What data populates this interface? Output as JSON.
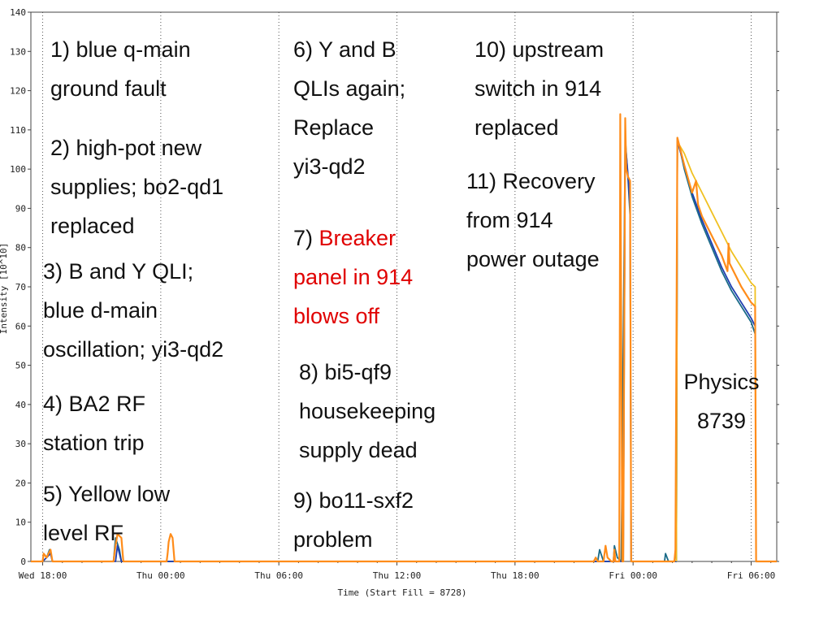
{
  "chart_data": {
    "type": "line",
    "xlabel": "Time (Start Fill = 8728)",
    "ylabel": "Intensity [10^10]",
    "ylim": [
      0,
      140
    ],
    "y_ticks": [
      0,
      10,
      20,
      30,
      40,
      50,
      60,
      70,
      80,
      90,
      100,
      110,
      120,
      130,
      140
    ],
    "x_range_hours": [
      -0.6,
      37.3
    ],
    "x_ticks": [
      {
        "label": "Wed 18:00",
        "hour": 0
      },
      {
        "label": "Thu 00:00",
        "hour": 6
      },
      {
        "label": "Thu 06:00",
        "hour": 12
      },
      {
        "label": "Thu 12:00",
        "hour": 18
      },
      {
        "label": "Thu 18:00",
        "hour": 24
      },
      {
        "label": "Fri 00:00",
        "hour": 30
      },
      {
        "label": "Fri 06:00",
        "hour": 36
      }
    ],
    "grid": "vertical dotted at ticks",
    "series": [
      {
        "color": "#1a6b88",
        "points": [
          [
            0,
            0
          ],
          [
            0.05,
            2
          ],
          [
            0.2,
            1
          ],
          [
            0.35,
            3
          ],
          [
            0.5,
            0
          ],
          [
            3.6,
            0
          ],
          [
            3.7,
            6
          ],
          [
            3.9,
            3
          ],
          [
            4.0,
            0
          ],
          [
            28.2,
            0
          ],
          [
            28.3,
            3
          ],
          [
            28.5,
            0
          ],
          [
            29.0,
            0
          ],
          [
            29.05,
            4
          ],
          [
            29.2,
            1
          ],
          [
            29.4,
            0
          ],
          [
            29.6,
            108
          ],
          [
            29.75,
            97
          ],
          [
            29.85,
            88
          ],
          [
            29.9,
            0
          ],
          [
            31.6,
            0
          ],
          [
            31.65,
            2
          ],
          [
            31.8,
            0
          ],
          [
            32.2,
            0
          ],
          [
            32.25,
            108
          ],
          [
            32.6,
            100
          ],
          [
            33.0,
            93
          ],
          [
            33.5,
            86
          ],
          [
            34.0,
            80
          ],
          [
            34.5,
            74
          ],
          [
            35.0,
            69
          ],
          [
            35.5,
            65
          ],
          [
            36.0,
            61
          ],
          [
            36.2,
            58
          ]
        ]
      },
      {
        "color": "#1f3fb0",
        "points": [
          [
            0,
            0
          ],
          [
            0.2,
            1
          ],
          [
            0.4,
            2
          ],
          [
            0.5,
            0
          ],
          [
            3.7,
            0
          ],
          [
            3.8,
            4
          ],
          [
            4.0,
            0
          ],
          [
            29.0,
            0
          ],
          [
            29.5,
            0
          ],
          [
            29.6,
            107
          ],
          [
            29.75,
            98
          ],
          [
            29.85,
            90
          ],
          [
            29.9,
            0
          ],
          [
            32.2,
            0
          ],
          [
            32.25,
            107
          ],
          [
            32.6,
            101
          ],
          [
            33.0,
            94
          ],
          [
            33.5,
            87
          ],
          [
            34.0,
            81
          ],
          [
            34.5,
            75
          ],
          [
            35.0,
            70
          ],
          [
            35.5,
            66
          ],
          [
            36.0,
            62
          ],
          [
            36.2,
            60
          ]
        ]
      },
      {
        "color": "#f0c020",
        "points": [
          [
            32.2,
            0
          ],
          [
            32.25,
            107
          ],
          [
            32.6,
            104
          ],
          [
            33.0,
            99
          ],
          [
            33.5,
            94
          ],
          [
            34.0,
            89
          ],
          [
            34.5,
            84
          ],
          [
            35.0,
            79
          ],
          [
            35.5,
            75
          ],
          [
            36.0,
            71
          ],
          [
            36.2,
            70
          ],
          [
            36.25,
            0
          ]
        ]
      },
      {
        "color": "#ff8c1a",
        "points": [
          [
            -0.6,
            0
          ],
          [
            0.0,
            0
          ],
          [
            0.05,
            2
          ],
          [
            0.2,
            1
          ],
          [
            0.4,
            3
          ],
          [
            0.5,
            0
          ],
          [
            3.6,
            0
          ],
          [
            3.7,
            4
          ],
          [
            3.8,
            7
          ],
          [
            4.0,
            6
          ],
          [
            4.1,
            0
          ],
          [
            6.3,
            0
          ],
          [
            6.35,
            2
          ],
          [
            6.4,
            5
          ],
          [
            6.5,
            7
          ],
          [
            6.6,
            6
          ],
          [
            6.7,
            0
          ],
          [
            28.0,
            0
          ],
          [
            28.1,
            1
          ],
          [
            28.2,
            0
          ],
          [
            28.5,
            0
          ],
          [
            28.6,
            4
          ],
          [
            28.7,
            1
          ],
          [
            28.9,
            0
          ],
          [
            29.0,
            0
          ],
          [
            29.05,
            3
          ],
          [
            29.1,
            0
          ],
          [
            29.3,
            0
          ],
          [
            29.35,
            114
          ],
          [
            29.45,
            0
          ],
          [
            29.5,
            0
          ],
          [
            29.6,
            113
          ],
          [
            29.65,
            100
          ],
          [
            29.75,
            98
          ],
          [
            29.85,
            97
          ],
          [
            29.9,
            0
          ],
          [
            32.1,
            0
          ],
          [
            32.15,
            3
          ],
          [
            32.25,
            108
          ],
          [
            32.6,
            101
          ],
          [
            33.0,
            94
          ],
          [
            33.2,
            97
          ],
          [
            33.3,
            91
          ],
          [
            33.5,
            88
          ],
          [
            34.0,
            83
          ],
          [
            34.5,
            78
          ],
          [
            34.8,
            74
          ],
          [
            34.85,
            81
          ],
          [
            34.9,
            76
          ],
          [
            35.0,
            75
          ],
          [
            35.5,
            70
          ],
          [
            36.0,
            66
          ],
          [
            36.2,
            65
          ],
          [
            36.25,
            0
          ],
          [
            37.3,
            0
          ]
        ]
      }
    ]
  },
  "notes": {
    "n1": [
      "1) blue q-main",
      "ground fault"
    ],
    "n2": [
      "2) high-pot new",
      "supplies; bo2-qd1",
      "replaced"
    ],
    "n3": [
      "3) B and Y QLI;",
      "blue d-main",
      "oscillation; yi3-qd2"
    ],
    "n4": [
      "4) BA2 RF",
      "station trip"
    ],
    "n5": [
      "5) Yellow low",
      "level RF"
    ],
    "n6": [
      "6) Y and B",
      "QLIs again;",
      "Replace",
      "yi3-qd2"
    ],
    "n7_prefix": "7) ",
    "n7_red": [
      "Breaker",
      "panel in 914",
      "blows off"
    ],
    "n8": [
      "8) bi5-qf9",
      "housekeeping",
      "supply dead"
    ],
    "n9": [
      "9) bo11-sxf2",
      "problem"
    ],
    "n10": [
      "10) upstream",
      "switch in 914",
      "replaced"
    ],
    "n11": [
      "11) Recovery",
      "from 914",
      "power outage"
    ],
    "physics": [
      "Physics",
      "8739"
    ]
  }
}
